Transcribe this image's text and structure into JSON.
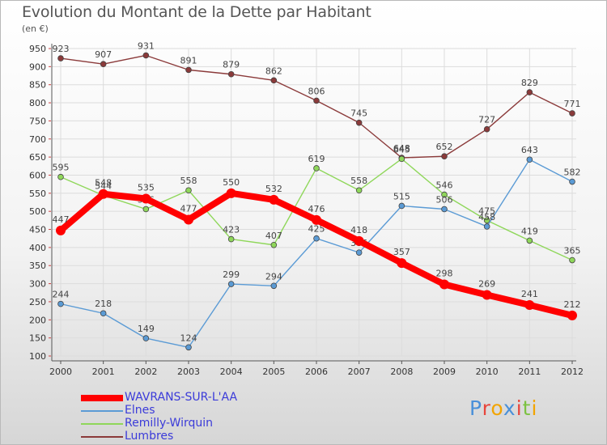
{
  "chart_data": {
    "type": "line",
    "title": "Evolution du Montant de la Dette par Habitant",
    "subtitle": "(en €)",
    "x": [
      "2000",
      "2001",
      "2002",
      "2003",
      "2004",
      "2005",
      "2006",
      "2007",
      "2008",
      "2009",
      "2010",
      "2011",
      "2012"
    ],
    "ylim": [
      100,
      950
    ],
    "yticks": [
      100,
      150,
      200,
      250,
      300,
      350,
      400,
      450,
      500,
      550,
      600,
      650,
      700,
      750,
      800,
      850,
      900,
      950
    ],
    "grid": true,
    "legend_position": "bottom-left",
    "series": [
      {
        "name": "WAVRANS-SUR-L'AA",
        "color": "#ff0000",
        "values": [
          447,
          548,
          535,
          477,
          550,
          532,
          476,
          418,
          357,
          298,
          269,
          241,
          212
        ]
      },
      {
        "name": "Elnes",
        "color": "#5b9bd5",
        "values": [
          244,
          218,
          149,
          124,
          299,
          294,
          425,
          386,
          515,
          506,
          458,
          643,
          582
        ]
      },
      {
        "name": "Remilly-Wirquin",
        "color": "#8fd75a",
        "values": [
          595,
          544,
          506,
          558,
          423,
          407,
          619,
          558,
          645,
          546,
          475,
          419,
          365
        ]
      },
      {
        "name": "Lumbres",
        "color": "#8b3a3a",
        "values": [
          923,
          907,
          931,
          891,
          879,
          862,
          806,
          745,
          648,
          652,
          727,
          829,
          771
        ]
      }
    ]
  },
  "logo": {
    "text": "Proxiti"
  }
}
